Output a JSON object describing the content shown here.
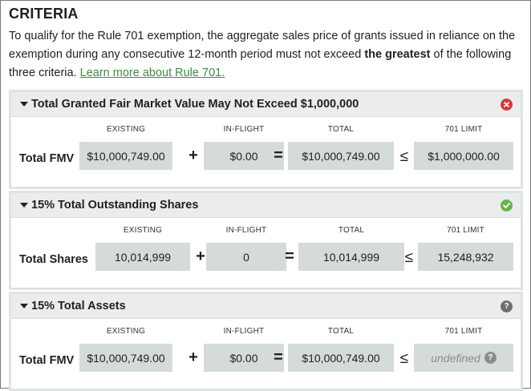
{
  "header": {
    "title": "CRITERIA",
    "intro_1": "To qualify for the Rule 701 exemption, the aggregate sales price of grants issued in reliance on the exemption during any consecutive 12-month period must not exceed ",
    "intro_bold": "the greatest",
    "intro_2": " of the following three criteria. ",
    "link": "Learn more about Rule 701."
  },
  "columns": {
    "existing": "EXISTING",
    "inflight": "IN-FLIGHT",
    "total": "TOTAL",
    "limit": "701 LIMIT"
  },
  "operators": {
    "plus": "+",
    "equals": "=",
    "leq": "≤"
  },
  "sections": [
    {
      "title": "Total Granted Fair Market Value May Not Exceed $1,000,000",
      "status": "error",
      "status_icon": "error-icon",
      "row_label": "Total FMV",
      "existing": "$10,000,749.00",
      "inflight": "$0.00",
      "total": "$10,000,749.00",
      "limit": "$1,000,000.00"
    },
    {
      "title": "15% Total Outstanding Shares",
      "status": "ok",
      "status_icon": "check-icon",
      "row_label": "Total Shares",
      "existing": "10,014,999",
      "inflight": "0",
      "total": "10,014,999",
      "limit": "15,248,932"
    },
    {
      "title": "15% Total Assets",
      "status": "help",
      "status_icon": "help-icon",
      "row_label": "Total FMV",
      "existing": "$10,000,749.00",
      "inflight": "$0.00",
      "total": "$10,000,749.00",
      "limit": "undefined"
    }
  ],
  "colors": {
    "accent_link": "#3e8e3e",
    "error": "#d9383a",
    "ok": "#6ab24e",
    "help": "#6f6f6f",
    "value_bg": "#d5dbda"
  }
}
